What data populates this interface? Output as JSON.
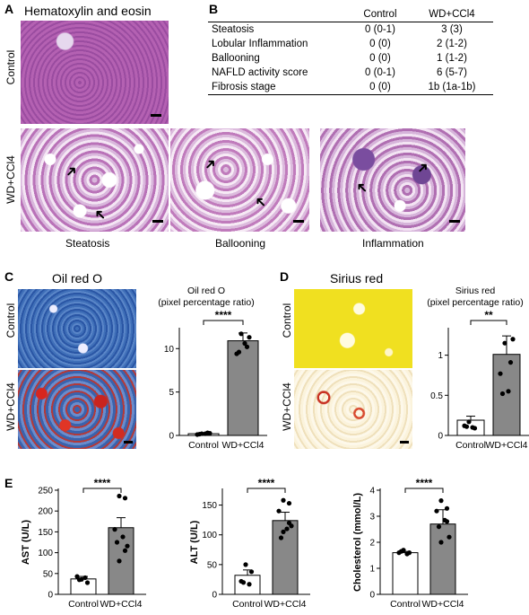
{
  "panels": {
    "A": {
      "letter": "A",
      "title": "Hematoxylin and eosin",
      "row_labels": [
        "Control",
        "WD+CCl4"
      ],
      "captions": [
        "Steatosis",
        "Ballooning",
        "Inflammation"
      ],
      "scale_bar": "50 µm"
    },
    "B": {
      "letter": "B",
      "headers": [
        "",
        "Control",
        "WD+CCl4"
      ],
      "rows": [
        [
          "Steatosis",
          "0 (0-1)",
          "3 (3)"
        ],
        [
          "Lobular Inflammation",
          "0 (0)",
          "2 (1-2)"
        ],
        [
          "Ballooning",
          "0 (0)",
          "1 (1-2)"
        ],
        [
          "NAFLD activity score",
          "0 (0-1)",
          "6 (5-7)"
        ],
        [
          "Fibrosis stage",
          "0 (0)",
          "1b (1a-1b)"
        ]
      ]
    },
    "C": {
      "letter": "C",
      "title": "Oil red O",
      "row_labels": [
        "Control",
        "WD+CCl4"
      ],
      "scale_bar": "100 µm"
    },
    "D": {
      "letter": "D",
      "title": "Sirius red",
      "row_labels": [
        "Control",
        "WD+CCl4"
      ],
      "scale_bar": "100 µm"
    },
    "E": {
      "letter": "E"
    }
  },
  "chart_data": [
    {
      "id": "oilredo",
      "type": "bar",
      "title": "Oil red O\n(pixel percentage ratio)",
      "categories": [
        "Control",
        "WD+CCl4"
      ],
      "values": [
        0.2,
        10.9
      ],
      "errors": [
        0.1,
        0.9
      ],
      "points": [
        [
          0.2,
          0.3,
          0.1,
          0.2,
          0.15,
          0.25
        ],
        [
          11.7,
          10.2,
          9.4,
          10.6,
          9.6,
          11.3
        ]
      ],
      "yticks": [
        0,
        5,
        10
      ],
      "ylim": [
        0,
        12.2
      ],
      "ylabel": "",
      "significance": "****"
    },
    {
      "id": "siriusred",
      "type": "bar",
      "title": "Sirius red\n(pixel percentage ratio)",
      "categories": [
        "Control",
        "WD+CCl4"
      ],
      "values": [
        0.19,
        1.01
      ],
      "errors": [
        0.05,
        0.23
      ],
      "points": [
        [
          0.17,
          0.09,
          0.12,
          0.1,
          0.11
        ],
        [
          1.15,
          0.91,
          0.77,
          0.55,
          0.52,
          1.2
        ]
      ],
      "yticks": [
        0.0,
        0.5,
        1.0
      ],
      "ylim": [
        0,
        1.32
      ],
      "ylabel": "",
      "significance": "**"
    },
    {
      "id": "ast",
      "type": "bar",
      "title": "",
      "categories": [
        "Control",
        "WD+CCl4"
      ],
      "values": [
        37,
        160
      ],
      "errors": [
        6,
        24
      ],
      "points": [
        [
          36,
          28,
          43,
          40,
          35
        ],
        [
          236,
          231,
          156,
          138,
          125,
          116,
          80,
          105
        ]
      ],
      "yticks": [
        0,
        50,
        100,
        150,
        200,
        250
      ],
      "ylim": [
        0,
        250
      ],
      "ylabel": "AST (U/L)",
      "significance": "****"
    },
    {
      "id": "alt",
      "type": "bar",
      "title": "",
      "categories": [
        "Control",
        "WD+CCl4"
      ],
      "values": [
        32,
        124
      ],
      "errors": [
        9,
        14
      ],
      "points": [
        [
          50,
          38,
          22,
          17,
          20
        ],
        [
          158,
          153,
          140,
          110,
          95,
          115,
          105,
          120
        ]
      ],
      "yticks": [
        0,
        50,
        100,
        150
      ],
      "ylim": [
        0,
        175
      ],
      "ylabel": "ALT (U/L)",
      "significance": "****"
    },
    {
      "id": "chol",
      "type": "bar",
      "title": "",
      "categories": [
        "Control",
        "WD+CCl4"
      ],
      "values": [
        1.6,
        2.7
      ],
      "errors": [
        0.05,
        0.55
      ],
      "points": [
        [
          1.7,
          1.6,
          1.6,
          1.55,
          1.65
        ],
        [
          3.6,
          3.3,
          3.2,
          2.85,
          2.6,
          2.2,
          2.0,
          2.8
        ]
      ],
      "yticks": [
        0,
        1,
        2,
        3,
        4
      ],
      "ylim": [
        0,
        4
      ],
      "ylabel": "Cholesterol (mmol/L)",
      "significance": "****"
    }
  ]
}
